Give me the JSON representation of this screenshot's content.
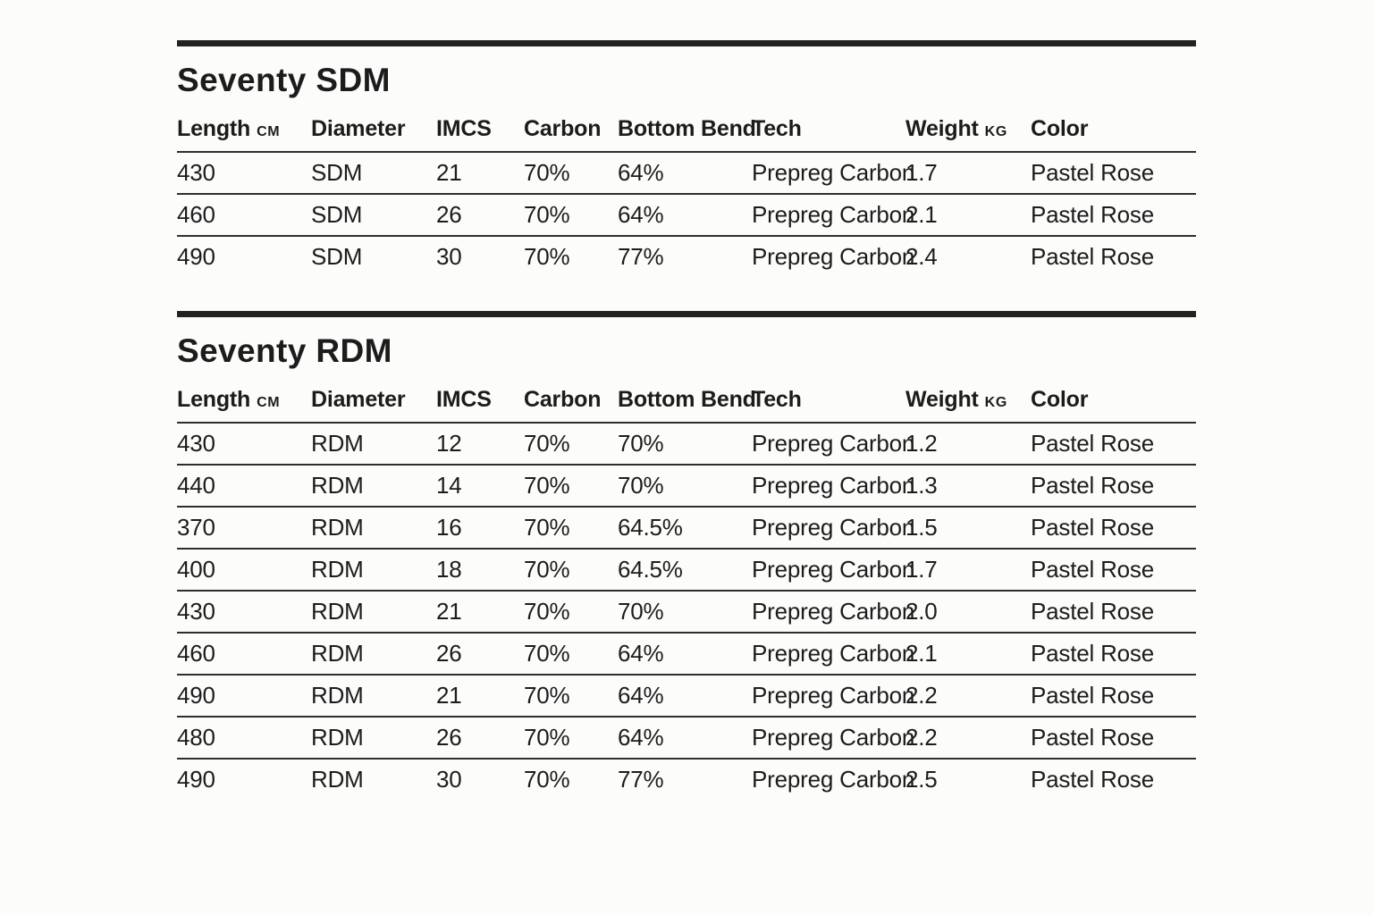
{
  "document": {
    "background": "#fcfcfb",
    "text_color": "#1c1c1c",
    "rule_color": "#222222"
  },
  "tables": [
    {
      "title": "Seventy SDM",
      "columns": [
        {
          "label": "Length",
          "unit": "CM"
        },
        {
          "label": "Diameter",
          "unit": ""
        },
        {
          "label": "IMCS",
          "unit": ""
        },
        {
          "label": "Carbon",
          "unit": ""
        },
        {
          "label": "Bottom Bend",
          "unit": ""
        },
        {
          "label": "Tech",
          "unit": ""
        },
        {
          "label": "Weight",
          "unit": "KG"
        },
        {
          "label": "Color",
          "unit": ""
        }
      ],
      "rows": [
        [
          "430",
          "SDM",
          "21",
          "70%",
          "64%",
          "Prepreg Carbon",
          "1.7",
          "Pastel Rose"
        ],
        [
          "460",
          "SDM",
          "26",
          "70%",
          "64%",
          "Prepreg Carbon",
          "2.1",
          "Pastel Rose"
        ],
        [
          "490",
          "SDM",
          "30",
          "70%",
          "77%",
          "Prepreg Carbon",
          "2.4",
          "Pastel Rose"
        ]
      ]
    },
    {
      "title": "Seventy RDM",
      "columns": [
        {
          "label": "Length",
          "unit": "CM"
        },
        {
          "label": "Diameter",
          "unit": ""
        },
        {
          "label": "IMCS",
          "unit": ""
        },
        {
          "label": "Carbon",
          "unit": ""
        },
        {
          "label": "Bottom Bend",
          "unit": ""
        },
        {
          "label": "Tech",
          "unit": ""
        },
        {
          "label": "Weight",
          "unit": "KG"
        },
        {
          "label": "Color",
          "unit": ""
        }
      ],
      "rows": [
        [
          "430",
          "RDM",
          "12",
          "70%",
          "70%",
          "Prepreg Carbon",
          "1.2",
          "Pastel Rose"
        ],
        [
          "440",
          "RDM",
          "14",
          "70%",
          "70%",
          "Prepreg Carbon",
          "1.3",
          "Pastel Rose"
        ],
        [
          "370",
          "RDM",
          "16",
          "70%",
          "64.5%",
          "Prepreg Carbon",
          "1.5",
          "Pastel Rose"
        ],
        [
          "400",
          "RDM",
          "18",
          "70%",
          "64.5%",
          "Prepreg Carbon",
          "1.7",
          "Pastel Rose"
        ],
        [
          "430",
          "RDM",
          "21",
          "70%",
          "70%",
          "Prepreg Carbon",
          "2.0",
          "Pastel Rose"
        ],
        [
          "460",
          "RDM",
          "26",
          "70%",
          "64%",
          "Prepreg Carbon",
          "2.1",
          "Pastel Rose"
        ],
        [
          "490",
          "RDM",
          "21",
          "70%",
          "64%",
          "Prepreg Carbon",
          "2.2",
          "Pastel Rose"
        ],
        [
          "480",
          "RDM",
          "26",
          "70%",
          "64%",
          "Prepreg Carbon",
          "2.2",
          "Pastel Rose"
        ],
        [
          "490",
          "RDM",
          "30",
          "70%",
          "77%",
          "Prepreg Carbon",
          "2.5",
          "Pastel Rose"
        ]
      ]
    }
  ]
}
